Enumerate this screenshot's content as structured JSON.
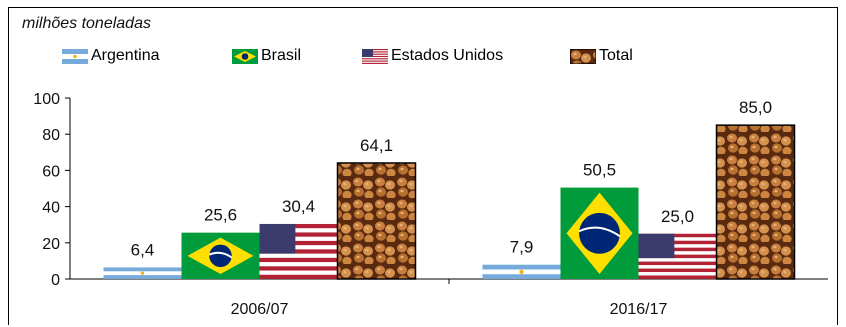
{
  "chart_data": {
    "type": "bar",
    "unit_label": "milhões toneladas",
    "categories": [
      "2006/07",
      "2016/17"
    ],
    "series": [
      {
        "name": "Argentina",
        "values": [
          6.4,
          7.9
        ],
        "labels": [
          "6,4",
          "7,9"
        ],
        "pattern": "argentina-flag"
      },
      {
        "name": "Brasil",
        "values": [
          25.6,
          50.5
        ],
        "labels": [
          "25,6",
          "50,5"
        ],
        "pattern": "brazil-flag"
      },
      {
        "name": "Estados Unidos",
        "values": [
          30.4,
          25.0
        ],
        "labels": [
          "30,4",
          "25,0"
        ],
        "pattern": "usa-flag"
      },
      {
        "name": "Total",
        "values": [
          64.1,
          85.0
        ],
        "labels": [
          "64,1",
          "85,0"
        ],
        "pattern": "soybeans"
      }
    ],
    "ylim": [
      0,
      100
    ],
    "yticks": [
      "0",
      "20",
      "40",
      "60",
      "80",
      "100"
    ],
    "grid": false,
    "legend_position": "top",
    "colors": {
      "argentina_blue": "#75AADB",
      "brazil_green": "#009B3A",
      "brazil_yellow": "#FEDF00",
      "brazil_blue": "#002776",
      "usa_red": "#B22234",
      "usa_blue": "#3C3B6E",
      "soy_bean": "#C9803E",
      "soy_dark": "#5A2A10"
    }
  }
}
